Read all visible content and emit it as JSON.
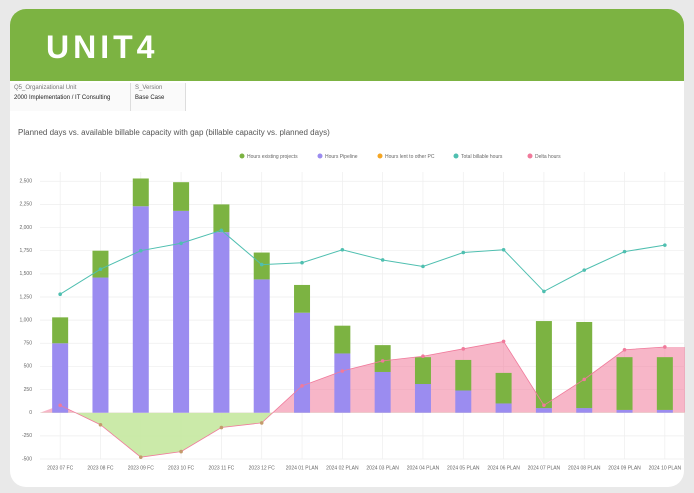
{
  "header": {
    "logo": "UNIT4"
  },
  "filters": [
    {
      "label": "Q5_Organizational Unit",
      "value": "2000 Implementation / IT Consulting"
    },
    {
      "label": "S_Version",
      "value": "Base Case"
    }
  ],
  "chart_data": {
    "type": "combo",
    "title": "Planned days vs. available billable capacity with gap (billable capacity vs. planned days)",
    "categories": [
      "2023 07 FC",
      "2023 08 FC",
      "2023 09 FC",
      "2023 10 FC",
      "2023 11 FC",
      "2023 12 FC",
      "2024 01 PLAN",
      "2024 02 PLAN",
      "2024 03 PLAN",
      "2024 04 PLAN",
      "2024 05 PLAN",
      "2024 06 PLAN",
      "2024 07 PLAN",
      "2024 08 PLAN",
      "2024 09 PLAN",
      "2024 10 PLAN"
    ],
    "series": [
      {
        "name": "Hours existing projects",
        "type": "bar",
        "color": "#7cb342",
        "values": [
          280,
          290,
          300,
          310,
          300,
          290,
          300,
          300,
          290,
          290,
          330,
          330,
          940,
          930,
          570,
          570
        ]
      },
      {
        "name": "Hours Pipeline",
        "type": "bar",
        "color": "#9b8cf0",
        "values": [
          750,
          1460,
          2230,
          2180,
          1950,
          1440,
          1080,
          640,
          440,
          310,
          240,
          100,
          50,
          50,
          30,
          30
        ]
      },
      {
        "name": "Hours lent to other PC",
        "type": "bar",
        "color": "#f5a623",
        "values": [
          null,
          null,
          null,
          null,
          null,
          null,
          null,
          null,
          null,
          null,
          null,
          null,
          null,
          null,
          null,
          null
        ]
      },
      {
        "name": "Total billable hours",
        "type": "line",
        "color": "#4fbfb0",
        "values": [
          1280,
          1550,
          1750,
          1830,
          1970,
          1600,
          1620,
          1760,
          1650,
          1580,
          1730,
          1760,
          1310,
          1540,
          1740,
          1810
        ]
      },
      {
        "name": "Delta hours",
        "type": "area",
        "color": "#f07a9b",
        "negative_color": "#c5e8a0",
        "values": [
          80,
          -130,
          -480,
          -420,
          -160,
          -110,
          290,
          450,
          560,
          610,
          690,
          770,
          80,
          360,
          680,
          710
        ]
      }
    ],
    "ylim": [
      -500,
      2600
    ],
    "yticks": [
      -500,
      -250,
      0,
      250,
      500,
      750,
      {
        "value": 1000,
        "label": "1,000"
      },
      {
        "value": 1250,
        "label": "1,250"
      },
      {
        "value": 1500,
        "label": "1,500"
      },
      {
        "value": 1750,
        "label": "1,750"
      },
      {
        "value": 2000,
        "label": "2,000"
      },
      {
        "value": 2250,
        "label": "2,250"
      },
      {
        "value": 2500,
        "label": "2,500"
      }
    ],
    "grid": true
  }
}
